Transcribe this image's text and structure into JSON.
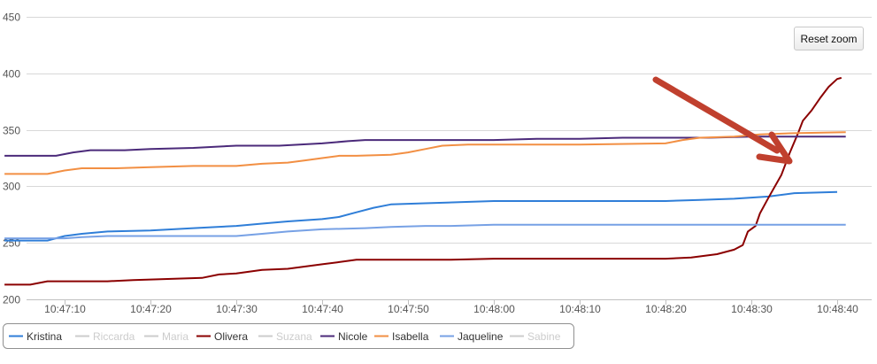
{
  "chart_data": {
    "type": "line",
    "xlabel": "",
    "ylabel": "",
    "x_unit": "time (seconds after 10:47:00)",
    "xlim": [
      3,
      101
    ],
    "ylim": [
      200,
      450
    ],
    "y_ticks": [
      200,
      250,
      300,
      350,
      400,
      450
    ],
    "x_ticks": [
      {
        "t": 10,
        "label": "10:47:10"
      },
      {
        "t": 20,
        "label": "10:47:20"
      },
      {
        "t": 30,
        "label": "10:47:30"
      },
      {
        "t": 40,
        "label": "10:47:40"
      },
      {
        "t": 50,
        "label": "10:47:50"
      },
      {
        "t": 60,
        "label": "10:48:00"
      },
      {
        "t": 70,
        "label": "10:48:10"
      },
      {
        "t": 80,
        "label": "10:48:20"
      },
      {
        "t": 90,
        "label": "10:48:30"
      },
      {
        "t": 100,
        "label": "10:48:40"
      }
    ],
    "grid": true,
    "legend_position": "bottom-left",
    "series": [
      {
        "name": "Kristina",
        "color": "#2f7ed8",
        "visible": true,
        "points": [
          [
            3,
            252
          ],
          [
            8,
            252
          ],
          [
            10,
            256
          ],
          [
            12,
            258
          ],
          [
            15,
            260
          ],
          [
            20,
            261
          ],
          [
            25,
            263
          ],
          [
            30,
            265
          ],
          [
            33,
            267
          ],
          [
            36,
            269
          ],
          [
            40,
            271
          ],
          [
            42,
            273
          ],
          [
            44,
            277
          ],
          [
            46,
            281
          ],
          [
            48,
            284
          ],
          [
            52,
            285
          ],
          [
            56,
            286
          ],
          [
            60,
            287
          ],
          [
            70,
            287
          ],
          [
            80,
            287
          ],
          [
            84,
            288
          ],
          [
            88,
            289
          ],
          [
            92,
            291
          ],
          [
            95,
            294
          ],
          [
            100,
            295
          ]
        ]
      },
      {
        "name": "Riccarda",
        "color": "#cccccc",
        "visible": false,
        "points": []
      },
      {
        "name": "Maria",
        "color": "#cccccc",
        "visible": false,
        "points": []
      },
      {
        "name": "Olivera",
        "color": "#8b0000",
        "visible": true,
        "points": [
          [
            3,
            213
          ],
          [
            6,
            213
          ],
          [
            8,
            216
          ],
          [
            15,
            216
          ],
          [
            18,
            217
          ],
          [
            22,
            218
          ],
          [
            26,
            219
          ],
          [
            28,
            222
          ],
          [
            30,
            223
          ],
          [
            33,
            226
          ],
          [
            36,
            227
          ],
          [
            40,
            231
          ],
          [
            42,
            233
          ],
          [
            44,
            235
          ],
          [
            50,
            235
          ],
          [
            55,
            235
          ],
          [
            60,
            236
          ],
          [
            70,
            236
          ],
          [
            80,
            236
          ],
          [
            83,
            237
          ],
          [
            86,
            240
          ],
          [
            88,
            244
          ],
          [
            89,
            248
          ],
          [
            89.6,
            260
          ],
          [
            90.5,
            265
          ],
          [
            91,
            276
          ],
          [
            92,
            290
          ],
          [
            93.5,
            310
          ],
          [
            94.5,
            330
          ],
          [
            95.5,
            348
          ],
          [
            96,
            358
          ],
          [
            97,
            367
          ],
          [
            98,
            378
          ],
          [
            99,
            388
          ],
          [
            100,
            395
          ],
          [
            100.5,
            396
          ]
        ]
      },
      {
        "name": "Suzana",
        "color": "#cccccc",
        "visible": false,
        "points": []
      },
      {
        "name": "Nicole",
        "color": "#4b2a7a",
        "visible": true,
        "points": [
          [
            3,
            327
          ],
          [
            9,
            327
          ],
          [
            11,
            330
          ],
          [
            13,
            332
          ],
          [
            17,
            332
          ],
          [
            20,
            333
          ],
          [
            25,
            334
          ],
          [
            30,
            336
          ],
          [
            35,
            336
          ],
          [
            40,
            338
          ],
          [
            43,
            340
          ],
          [
            45,
            341
          ],
          [
            50,
            341
          ],
          [
            55,
            341
          ],
          [
            60,
            341
          ],
          [
            65,
            342
          ],
          [
            70,
            342
          ],
          [
            75,
            343
          ],
          [
            80,
            343
          ],
          [
            85,
            343
          ],
          [
            90,
            344
          ],
          [
            95,
            344
          ],
          [
            101,
            344
          ]
        ]
      },
      {
        "name": "Isabella",
        "color": "#f28f43",
        "visible": true,
        "points": [
          [
            3,
            311
          ],
          [
            8,
            311
          ],
          [
            10,
            314
          ],
          [
            12,
            316
          ],
          [
            16,
            316
          ],
          [
            20,
            317
          ],
          [
            25,
            318
          ],
          [
            30,
            318
          ],
          [
            33,
            320
          ],
          [
            36,
            321
          ],
          [
            38,
            323
          ],
          [
            40,
            325
          ],
          [
            42,
            327
          ],
          [
            44,
            327
          ],
          [
            48,
            328
          ],
          [
            50,
            330
          ],
          [
            52,
            333
          ],
          [
            54,
            336
          ],
          [
            57,
            337
          ],
          [
            60,
            337
          ],
          [
            70,
            337
          ],
          [
            80,
            338
          ],
          [
            82,
            341
          ],
          [
            84,
            343
          ],
          [
            88,
            344
          ],
          [
            91,
            346
          ],
          [
            95,
            347
          ],
          [
            101,
            348
          ]
        ]
      },
      {
        "name": "Jaqueline",
        "color": "#77a1e5",
        "visible": true,
        "points": [
          [
            3,
            254
          ],
          [
            10,
            254
          ],
          [
            12,
            255
          ],
          [
            15,
            256
          ],
          [
            20,
            256
          ],
          [
            25,
            256
          ],
          [
            30,
            256
          ],
          [
            33,
            258
          ],
          [
            36,
            260
          ],
          [
            40,
            262
          ],
          [
            45,
            263
          ],
          [
            48,
            264
          ],
          [
            52,
            265
          ],
          [
            55,
            265
          ],
          [
            60,
            266
          ],
          [
            70,
            266
          ],
          [
            80,
            266
          ],
          [
            90,
            266
          ],
          [
            101,
            266
          ]
        ]
      },
      {
        "name": "Sabine",
        "color": "#cccccc",
        "visible": false,
        "points": []
      }
    ]
  },
  "toolbar": {
    "reset_zoom_label": "Reset zoom"
  },
  "annotation": {
    "arrow_color": "#c0402e"
  }
}
